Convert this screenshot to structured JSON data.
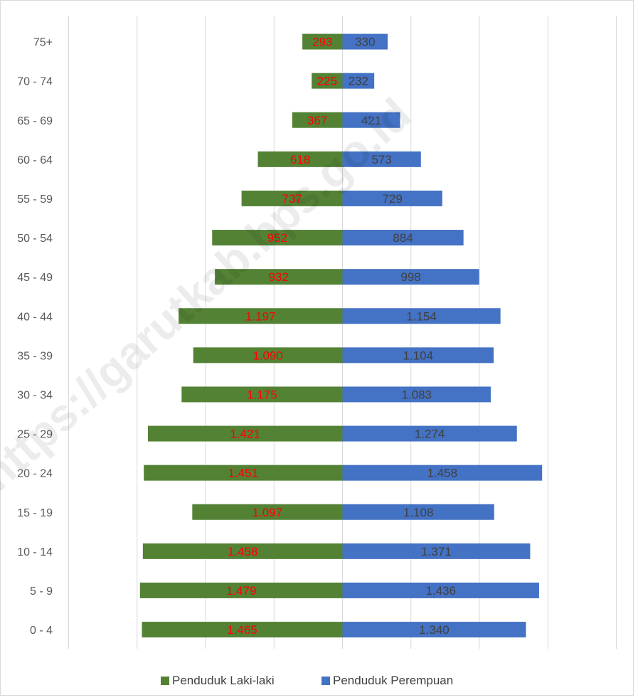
{
  "chart_data": {
    "type": "bar",
    "orientation": "horizontal",
    "layout": "population-pyramid",
    "categories": [
      "75+",
      "70 - 74",
      "65 - 69",
      "60 - 64",
      "55 - 59",
      "50 - 54",
      "45 - 49",
      "40 - 44",
      "35 - 39",
      "30 - 34",
      "25 - 29",
      "20 - 24",
      "15 - 19",
      "10 - 14",
      "5 - 9",
      "0 - 4"
    ],
    "series": [
      {
        "name": "Penduduk Laki-laki",
        "color": "#548235",
        "label_color": "#ff0000",
        "values": [
          293,
          225,
          367,
          618,
          737,
          952,
          932,
          1197,
          1090,
          1175,
          1421,
          1451,
          1097,
          1458,
          1479,
          1465
        ],
        "labels": [
          "293",
          "225",
          "367",
          "618",
          "737",
          "952",
          "932",
          "1.197",
          "1.090",
          "1.175",
          "1.421",
          "1.451",
          "1.097",
          "1.458",
          "1.479",
          "1.465"
        ]
      },
      {
        "name": "Penduduk Perempuan",
        "color": "#4472c4",
        "label_color": "#404040",
        "values": [
          330,
          232,
          421,
          573,
          729,
          884,
          998,
          1154,
          1104,
          1083,
          1274,
          1458,
          1108,
          1371,
          1436,
          1340
        ],
        "labels": [
          "330",
          "232",
          "421",
          "573",
          "729",
          "884",
          "998",
          "1.154",
          "1.104",
          "1.083",
          "1.274",
          "1.458",
          "1.108",
          "1.371",
          "1.436",
          "1.340"
        ]
      }
    ],
    "xlim": [
      -2000,
      2000
    ],
    "grid": true,
    "legend": "bottom",
    "watermark": "https://garutkab.bps.go.id"
  }
}
